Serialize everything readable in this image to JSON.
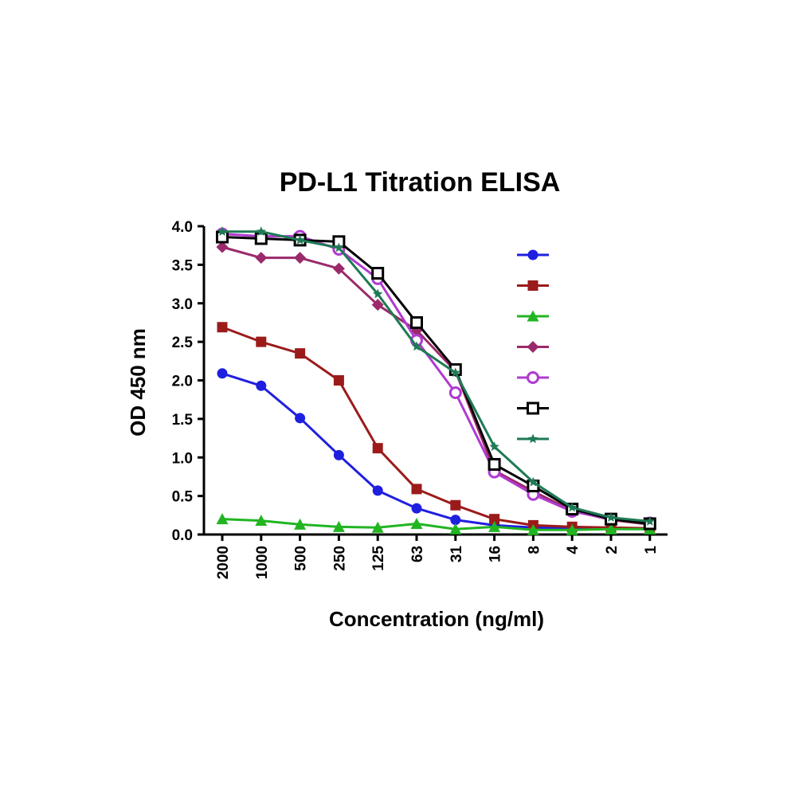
{
  "chart_data": {
    "type": "line",
    "title": "PD-L1 Titration ELISA",
    "xlabel": "Concentration (ng/ml)",
    "ylabel": "OD 450 nm",
    "categories": [
      "2000",
      "1000",
      "500",
      "250",
      "125",
      "63",
      "31",
      "16",
      "8",
      "4",
      "2",
      "1"
    ],
    "ylim": [
      0,
      4.0
    ],
    "yticks": [
      "0.0",
      "0.5",
      "1.0",
      "1.5",
      "2.0",
      "2.5",
      "3.0",
      "3.5",
      "4.0"
    ],
    "grid": false,
    "legend_position": "top-right",
    "series": [
      {
        "color": "#1f1fe0",
        "marker": "circle",
        "values": [
          2.09,
          1.93,
          1.51,
          1.03,
          0.57,
          0.34,
          0.19,
          0.12,
          0.09,
          0.08,
          0.08,
          0.07
        ]
      },
      {
        "color": "#9b1b1b",
        "marker": "square",
        "values": [
          2.69,
          2.5,
          2.35,
          2.0,
          1.12,
          0.59,
          0.38,
          0.2,
          0.12,
          0.1,
          0.09,
          0.08
        ]
      },
      {
        "color": "#22b522",
        "marker": "triangle",
        "values": [
          0.2,
          0.18,
          0.13,
          0.1,
          0.09,
          0.14,
          0.07,
          0.1,
          0.06,
          0.06,
          0.07,
          0.07
        ]
      },
      {
        "color": "#9b2a6b",
        "marker": "diamond",
        "values": [
          3.73,
          3.59,
          3.59,
          3.45,
          2.98,
          2.65,
          2.12,
          0.83,
          0.56,
          0.31,
          0.19,
          0.13
        ]
      },
      {
        "color": "#b03ad0",
        "marker": "open-circle",
        "values": [
          3.9,
          3.87,
          3.87,
          3.7,
          3.32,
          2.52,
          1.84,
          0.81,
          0.52,
          0.3,
          0.2,
          0.15
        ]
      },
      {
        "color": "#000000",
        "marker": "open-square",
        "values": [
          3.86,
          3.84,
          3.82,
          3.8,
          3.39,
          2.75,
          2.14,
          0.91,
          0.63,
          0.33,
          0.2,
          0.14
        ]
      },
      {
        "color": "#1f7a55",
        "marker": "star",
        "values": [
          3.93,
          3.93,
          3.82,
          3.72,
          3.12,
          2.44,
          2.1,
          1.14,
          0.68,
          0.35,
          0.22,
          0.17
        ]
      }
    ]
  }
}
